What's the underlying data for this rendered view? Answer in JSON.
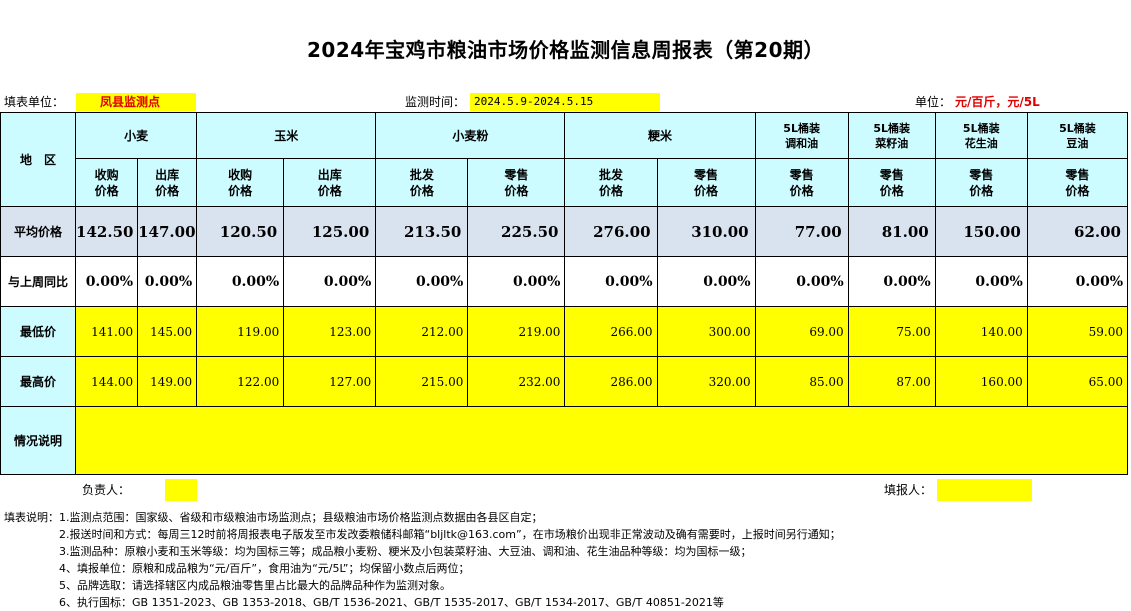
{
  "title": "2024年宝鸡市粮油市场价格监测信息周报表（第20期）",
  "info": {
    "unit_label": "填表单位：",
    "unit_value": "凤县监测点",
    "time_label": "监测时间：",
    "time_value": "2024.5.9-2024.5.15",
    "price_unit_label": "单位：",
    "price_unit_value": "元/百斤，元/5L"
  },
  "header": {
    "region": "地　区",
    "groups": [
      "小麦",
      "玉米",
      "小麦粉",
      "粳米",
      "5L桶装\n调和油",
      "5L桶装\n菜籽油",
      "5L桶装\n花生油",
      "5L桶装\n豆油"
    ],
    "subs": [
      "收购\n价格",
      "出库\n价格",
      "收购\n价格",
      "出库\n价格",
      "批发\n价格",
      "零售\n价格",
      "批发\n价格",
      "零售\n价格",
      "零售\n价格",
      "零售\n价格",
      "零售\n价格",
      "零售\n价格"
    ]
  },
  "rows": {
    "avg_label": "平均价格",
    "avg": [
      "142.50",
      "147.00",
      "120.50",
      "125.00",
      "213.50",
      "225.50",
      "276.00",
      "310.00",
      "77.00",
      "81.00",
      "150.00",
      "62.00"
    ],
    "yoy_label": "与上周同比",
    "yoy": [
      "0.00%",
      "0.00%",
      "0.00%",
      "0.00%",
      "0.00%",
      "0.00%",
      "0.00%",
      "0.00%",
      "0.00%",
      "0.00%",
      "0.00%",
      "0.00%"
    ],
    "min_label": "最低价",
    "min": [
      "141.00",
      "145.00",
      "119.00",
      "123.00",
      "212.00",
      "219.00",
      "266.00",
      "300.00",
      "69.00",
      "75.00",
      "140.00",
      "59.00"
    ],
    "max_label": "最高价",
    "max": [
      "144.00",
      "149.00",
      "122.00",
      "127.00",
      "215.00",
      "232.00",
      "286.00",
      "320.00",
      "85.00",
      "87.00",
      "160.00",
      "65.00"
    ],
    "note_label": "情况说明",
    "note_value": ""
  },
  "footer": {
    "responsible_label": "负责人：",
    "responsible_value": "",
    "reporter_label": "填报人：",
    "reporter_value": ""
  },
  "notes": [
    "填表说明：1.监测点范围：国家级、省级和市级粮油市场监测点；县级粮油市场价格监测点数据由各县区自定；",
    "　　　　　2.报送时间和方式：每周三12时前将周报表电子版发至市发改委粮储科邮箱“bljltk@163.com”，在市场粮价出现非正常波动及确有需要时，上报时间另行通知；",
    "　　　　　3.监测品种：原粮小麦和玉米等级：均为国标三等；成品粮小麦粉、粳米及小包装菜籽油、大豆油、调和油、花生油品种等级：均为国标一级；",
    "　　　　　4、填报单位：原粮和成品粮为“元/百斤”，食用油为“元/5L”；均保留小数点后两位；",
    "　　　　　5、品牌选取：请选择辖区内成品粮油零售里占比最大的品牌品种作为监测对象。",
    "　　　　　6、执行国标：GB 1351-2023、GB 1353-2018、GB/T 1536-2021、GB/T 1535-2017、GB/T 1534-2017、GB/T 40851-2021等"
  ],
  "colors": {
    "header_bg": "#ccfcff",
    "avg_bg": "#d9e3ef",
    "highlight": "#ffff00",
    "accent_red": "#e00000"
  }
}
